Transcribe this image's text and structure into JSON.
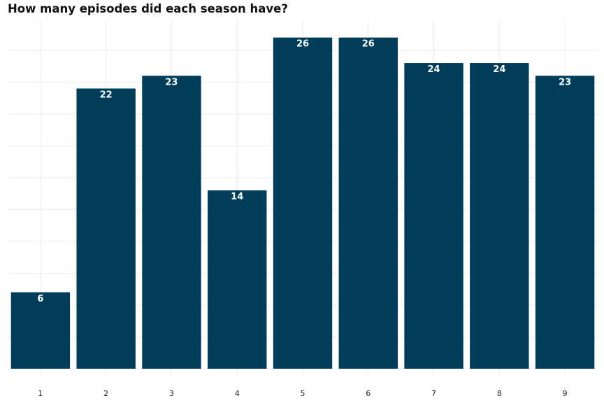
{
  "colors": {
    "bar": "#003d5b",
    "grid": "#ebebeb",
    "background": "#ffffff"
  },
  "chart_data": {
    "type": "bar",
    "title": "How many episodes did each season have?",
    "xlabel": "",
    "ylabel": "",
    "categories": [
      "1",
      "2",
      "3",
      "4",
      "5",
      "6",
      "7",
      "8",
      "9"
    ],
    "values": [
      6,
      22,
      23,
      14,
      26,
      26,
      24,
      24,
      23
    ],
    "ylim": [
      0,
      27.3
    ],
    "y_tick_labels_shown": false,
    "data_labels": true,
    "grid": true,
    "legend": "none"
  }
}
